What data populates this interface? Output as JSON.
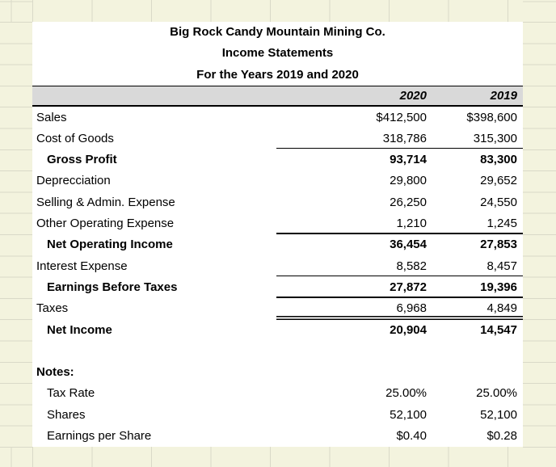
{
  "colors": {
    "page_background": "#f3f3de",
    "sheet_background": "#ffffff",
    "header_band_background": "#d9d9d9",
    "rule_color": "#000000",
    "margin_gridline_color": "#d9d9c8",
    "text_color": "#000000"
  },
  "header": {
    "company": "Big Rock Candy Mountain Mining Co.",
    "report": "Income Statements",
    "period": "For the Years 2019 and 2020",
    "col_year_1": "2020",
    "col_year_2": "2019"
  },
  "statement": {
    "rows": [
      {
        "label": "Sales",
        "y2020": "$412,500",
        "y2019": "$398,600",
        "bold": false,
        "indent": false,
        "rule": "none"
      },
      {
        "label": "Cost of Goods",
        "y2020": "318,786",
        "y2019": "315,300",
        "bold": false,
        "indent": false,
        "rule": "single"
      },
      {
        "label": "Gross Profit",
        "y2020": "93,714",
        "y2019": "83,300",
        "bold": true,
        "indent": true,
        "rule": "none"
      },
      {
        "label": "Deprecciation",
        "y2020": "29,800",
        "y2019": "29,652",
        "bold": false,
        "indent": false,
        "rule": "none"
      },
      {
        "label": "Selling & Admin. Expense",
        "y2020": "26,250",
        "y2019": "24,550",
        "bold": false,
        "indent": false,
        "rule": "none"
      },
      {
        "label": "Other Operating Expense",
        "y2020": "1,210",
        "y2019": "1,245",
        "bold": false,
        "indent": false,
        "rule": "single"
      },
      {
        "label": "Net Operating Income",
        "y2020": "36,454",
        "y2019": "27,853",
        "bold": true,
        "indent": true,
        "rule": "none"
      },
      {
        "label": "Interest Expense",
        "y2020": "8,582",
        "y2019": "8,457",
        "bold": false,
        "indent": false,
        "rule": "single"
      },
      {
        "label": "Earnings Before Taxes",
        "y2020": "27,872",
        "y2019": "19,396",
        "bold": true,
        "indent": true,
        "rule": "single"
      },
      {
        "label": "Taxes",
        "y2020": "6,968",
        "y2019": "4,849",
        "bold": false,
        "indent": false,
        "rule": "double"
      },
      {
        "label": "Net Income",
        "y2020": "20,904",
        "y2019": "14,547",
        "bold": true,
        "indent": true,
        "rule": "none"
      }
    ]
  },
  "notes": {
    "heading": "Notes:",
    "rows": [
      {
        "label": "Tax Rate",
        "y2020": "25.00%",
        "y2019": "25.00%"
      },
      {
        "label": "Shares",
        "y2020": "52,100",
        "y2019": "52,100"
      },
      {
        "label": "Earnings per Share",
        "y2020": "$0.40",
        "y2019": "$0.28"
      }
    ]
  }
}
